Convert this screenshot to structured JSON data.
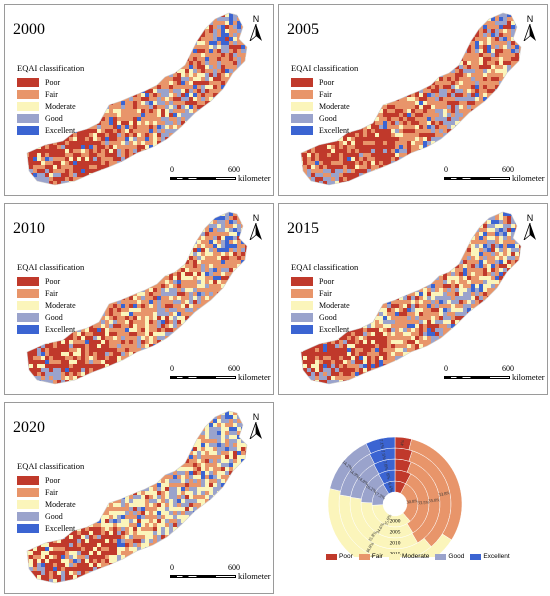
{
  "north_label": "N",
  "legend_title": "EQAI classification",
  "scale": {
    "zero": "0",
    "max": "600",
    "unit": "kilometer"
  },
  "classes": [
    {
      "label": "Poor",
      "color": "#c0392b"
    },
    {
      "label": "Fair",
      "color": "#e8956a"
    },
    {
      "label": "Moderate",
      "color": "#fbf5bb"
    },
    {
      "label": "Good",
      "color": "#9aa3cc"
    },
    {
      "label": "Excellent",
      "color": "#3b64d2"
    }
  ],
  "maps": [
    {
      "year": "2000",
      "mix": [
        0.22,
        0.5,
        0.14,
        0.09,
        0.05
      ]
    },
    {
      "year": "2005",
      "mix": [
        0.24,
        0.52,
        0.12,
        0.08,
        0.04
      ]
    },
    {
      "year": "2010",
      "mix": [
        0.15,
        0.5,
        0.2,
        0.1,
        0.05
      ]
    },
    {
      "year": "2015",
      "mix": [
        0.14,
        0.44,
        0.25,
        0.12,
        0.05
      ]
    },
    {
      "year": "2020",
      "mix": [
        0.08,
        0.32,
        0.38,
        0.15,
        0.07
      ]
    }
  ],
  "chart_data": {
    "type": "pie",
    "subtype": "nested-donut",
    "title": "",
    "categories": [
      "Poor",
      "Fair",
      "Moderate",
      "Good",
      "Excellent"
    ],
    "rings": [
      "2000",
      "2005",
      "2010",
      "2015",
      "2020"
    ],
    "series": [
      {
        "name": "2000",
        "values": [
          7.7,
          30.8,
          35.6,
          17.3,
          8.6
        ]
      },
      {
        "name": "2005",
        "values": [
          7.7,
          33.5,
          34.6,
          16.2,
          8.0
        ]
      },
      {
        "name": "2010",
        "values": [
          5.8,
          35.8,
          35.8,
          14.8,
          7.8
        ]
      },
      {
        "name": "2015",
        "values": [
          5.0,
          33.8,
          38.8,
          14.9,
          7.5
        ]
      },
      {
        "name": "2020",
        "values": [
          4.0,
          30.0,
          44.7,
          14.2,
          7.1
        ]
      }
    ],
    "labels": [
      [
        "",
        "30.8%",
        "35.6%",
        "17.3%",
        "8.6%"
      ],
      [
        "",
        "33.5%",
        "34.6%",
        "16.2%",
        "8%"
      ],
      [
        "",
        "35.8%",
        "35.8%",
        "14.8%",
        "7.8%"
      ],
      [
        "",
        "33.8%",
        "38.8%",
        "14.9%",
        "7.5%"
      ],
      [
        "4%",
        "",
        "44.7%",
        "14.2%",
        "7.1%"
      ]
    ],
    "legend_position": "bottom"
  }
}
